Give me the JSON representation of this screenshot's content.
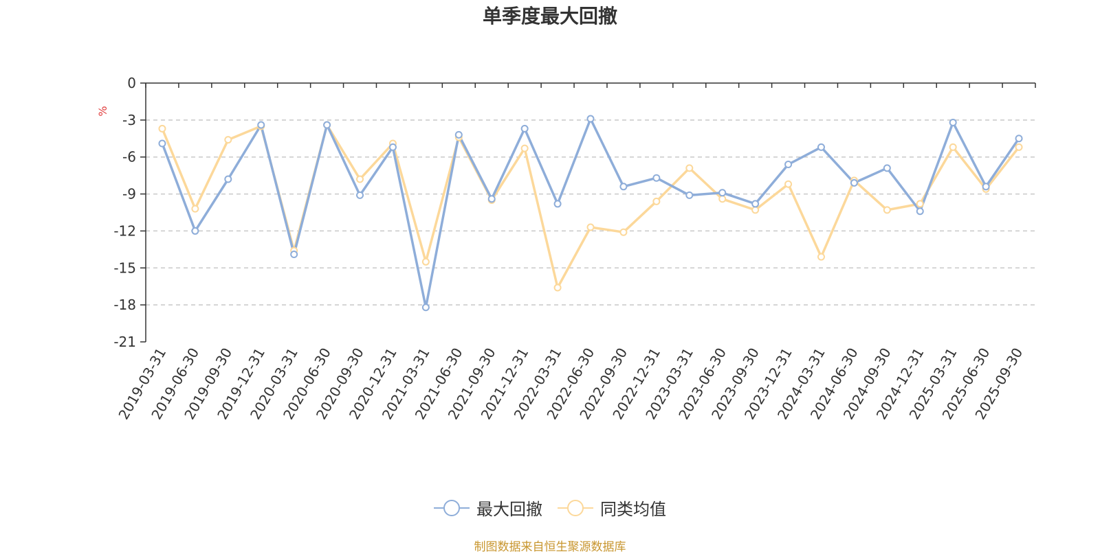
{
  "chart_data": {
    "type": "line",
    "title": "单季度最大回撤",
    "ylabel": "%",
    "ylim": [
      -21,
      0
    ],
    "yticks": [
      0,
      -3,
      -6,
      -9,
      -12,
      -15,
      -18,
      -21
    ],
    "grid": true,
    "legend_position": "bottom",
    "categories": [
      "2019-03-31",
      "2019-06-30",
      "2019-09-30",
      "2019-12-31",
      "2020-03-31",
      "2020-06-30",
      "2020-09-30",
      "2020-12-31",
      "2021-03-31",
      "2021-06-30",
      "2021-09-30",
      "2021-12-31",
      "2022-03-31",
      "2022-06-30",
      "2022-09-30",
      "2022-12-31",
      "2023-03-31",
      "2023-06-30",
      "2023-09-30",
      "2023-12-31",
      "2024-03-31",
      "2024-06-30",
      "2024-09-30",
      "2024-12-31",
      "2025-03-31",
      "2025-06-30",
      "2025-09-30"
    ],
    "series": [
      {
        "name": "最大回撤",
        "color": "#8eadd9",
        "values": [
          -4.9,
          -12.0,
          -7.8,
          -3.4,
          -13.9,
          -3.4,
          -9.1,
          -5.2,
          -18.2,
          -4.2,
          -9.4,
          -3.7,
          -9.8,
          -2.9,
          -8.4,
          -7.7,
          -9.1,
          -8.9,
          -9.8,
          -6.6,
          -5.2,
          -8.1,
          -6.9,
          -10.4,
          -3.2,
          -8.4,
          -4.5
        ]
      },
      {
        "name": "同类均值",
        "color": "#fcd89a",
        "values": [
          -3.7,
          -10.2,
          -4.6,
          -3.5,
          -13.6,
          -3.4,
          -7.8,
          -4.9,
          -14.5,
          -4.4,
          -9.5,
          -5.3,
          -16.6,
          -11.7,
          -12.1,
          -9.6,
          -6.9,
          -9.4,
          -10.3,
          -8.2,
          -14.1,
          -7.9,
          -10.3,
          -9.8,
          -5.2,
          -8.6,
          -5.2
        ]
      }
    ]
  },
  "source_text": "制图数据来自恒生聚源数据库",
  "source_color": "#c8962f",
  "ylabel_color": "#e03b3b"
}
